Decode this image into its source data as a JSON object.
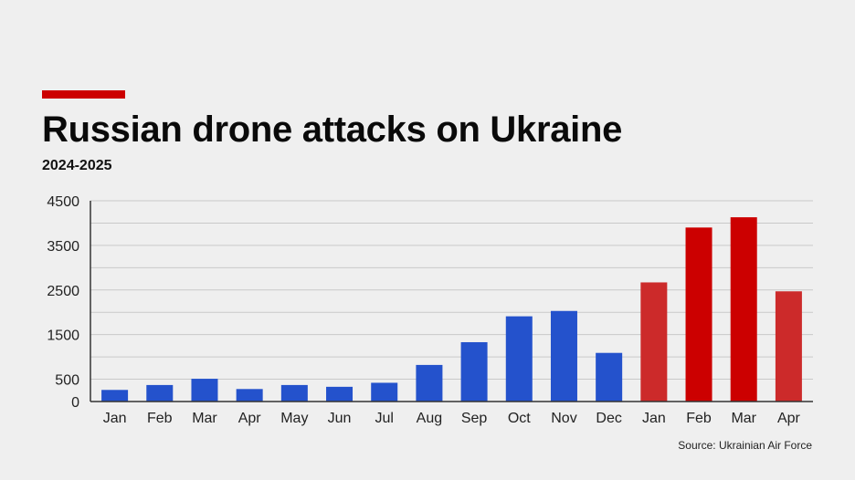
{
  "header": {
    "title": "Russian drone attacks on Ukraine",
    "subtitle": "2024-2025"
  },
  "footer": {
    "source": "Source: Ukrainian Air Force"
  },
  "colors": {
    "accent": "#cc0000",
    "series_2024": "#2452cc",
    "series_2025": "#cc0000",
    "series_2025_light": "#cc2a2a"
  },
  "chart_data": {
    "type": "bar",
    "title": "Russian drone attacks on Ukraine",
    "subtitle": "2024-2025",
    "categories": [
      "Jan",
      "Feb",
      "Mar",
      "Apr",
      "May",
      "Jun",
      "Jul",
      "Aug",
      "Sep",
      "Oct",
      "Nov",
      "Dec",
      "Jan",
      "Feb",
      "Mar",
      "Apr"
    ],
    "values": [
      260,
      370,
      510,
      280,
      370,
      330,
      420,
      820,
      1330,
      1910,
      2030,
      1090,
      2670,
      3900,
      4130,
      2470
    ],
    "bar_colors": [
      "#2452cc",
      "#2452cc",
      "#2452cc",
      "#2452cc",
      "#2452cc",
      "#2452cc",
      "#2452cc",
      "#2452cc",
      "#2452cc",
      "#2452cc",
      "#2452cc",
      "#2452cc",
      "#cc2a2a",
      "#cc0000",
      "#cc0000",
      "#cc2a2a"
    ],
    "ylim": [
      0,
      4500
    ],
    "yticks": [
      0,
      500,
      1500,
      2500,
      3500,
      4500
    ],
    "grid": true,
    "grid_step": 500,
    "xlabel": "",
    "ylabel": "",
    "source": "Source: Ukrainian Air Force"
  }
}
